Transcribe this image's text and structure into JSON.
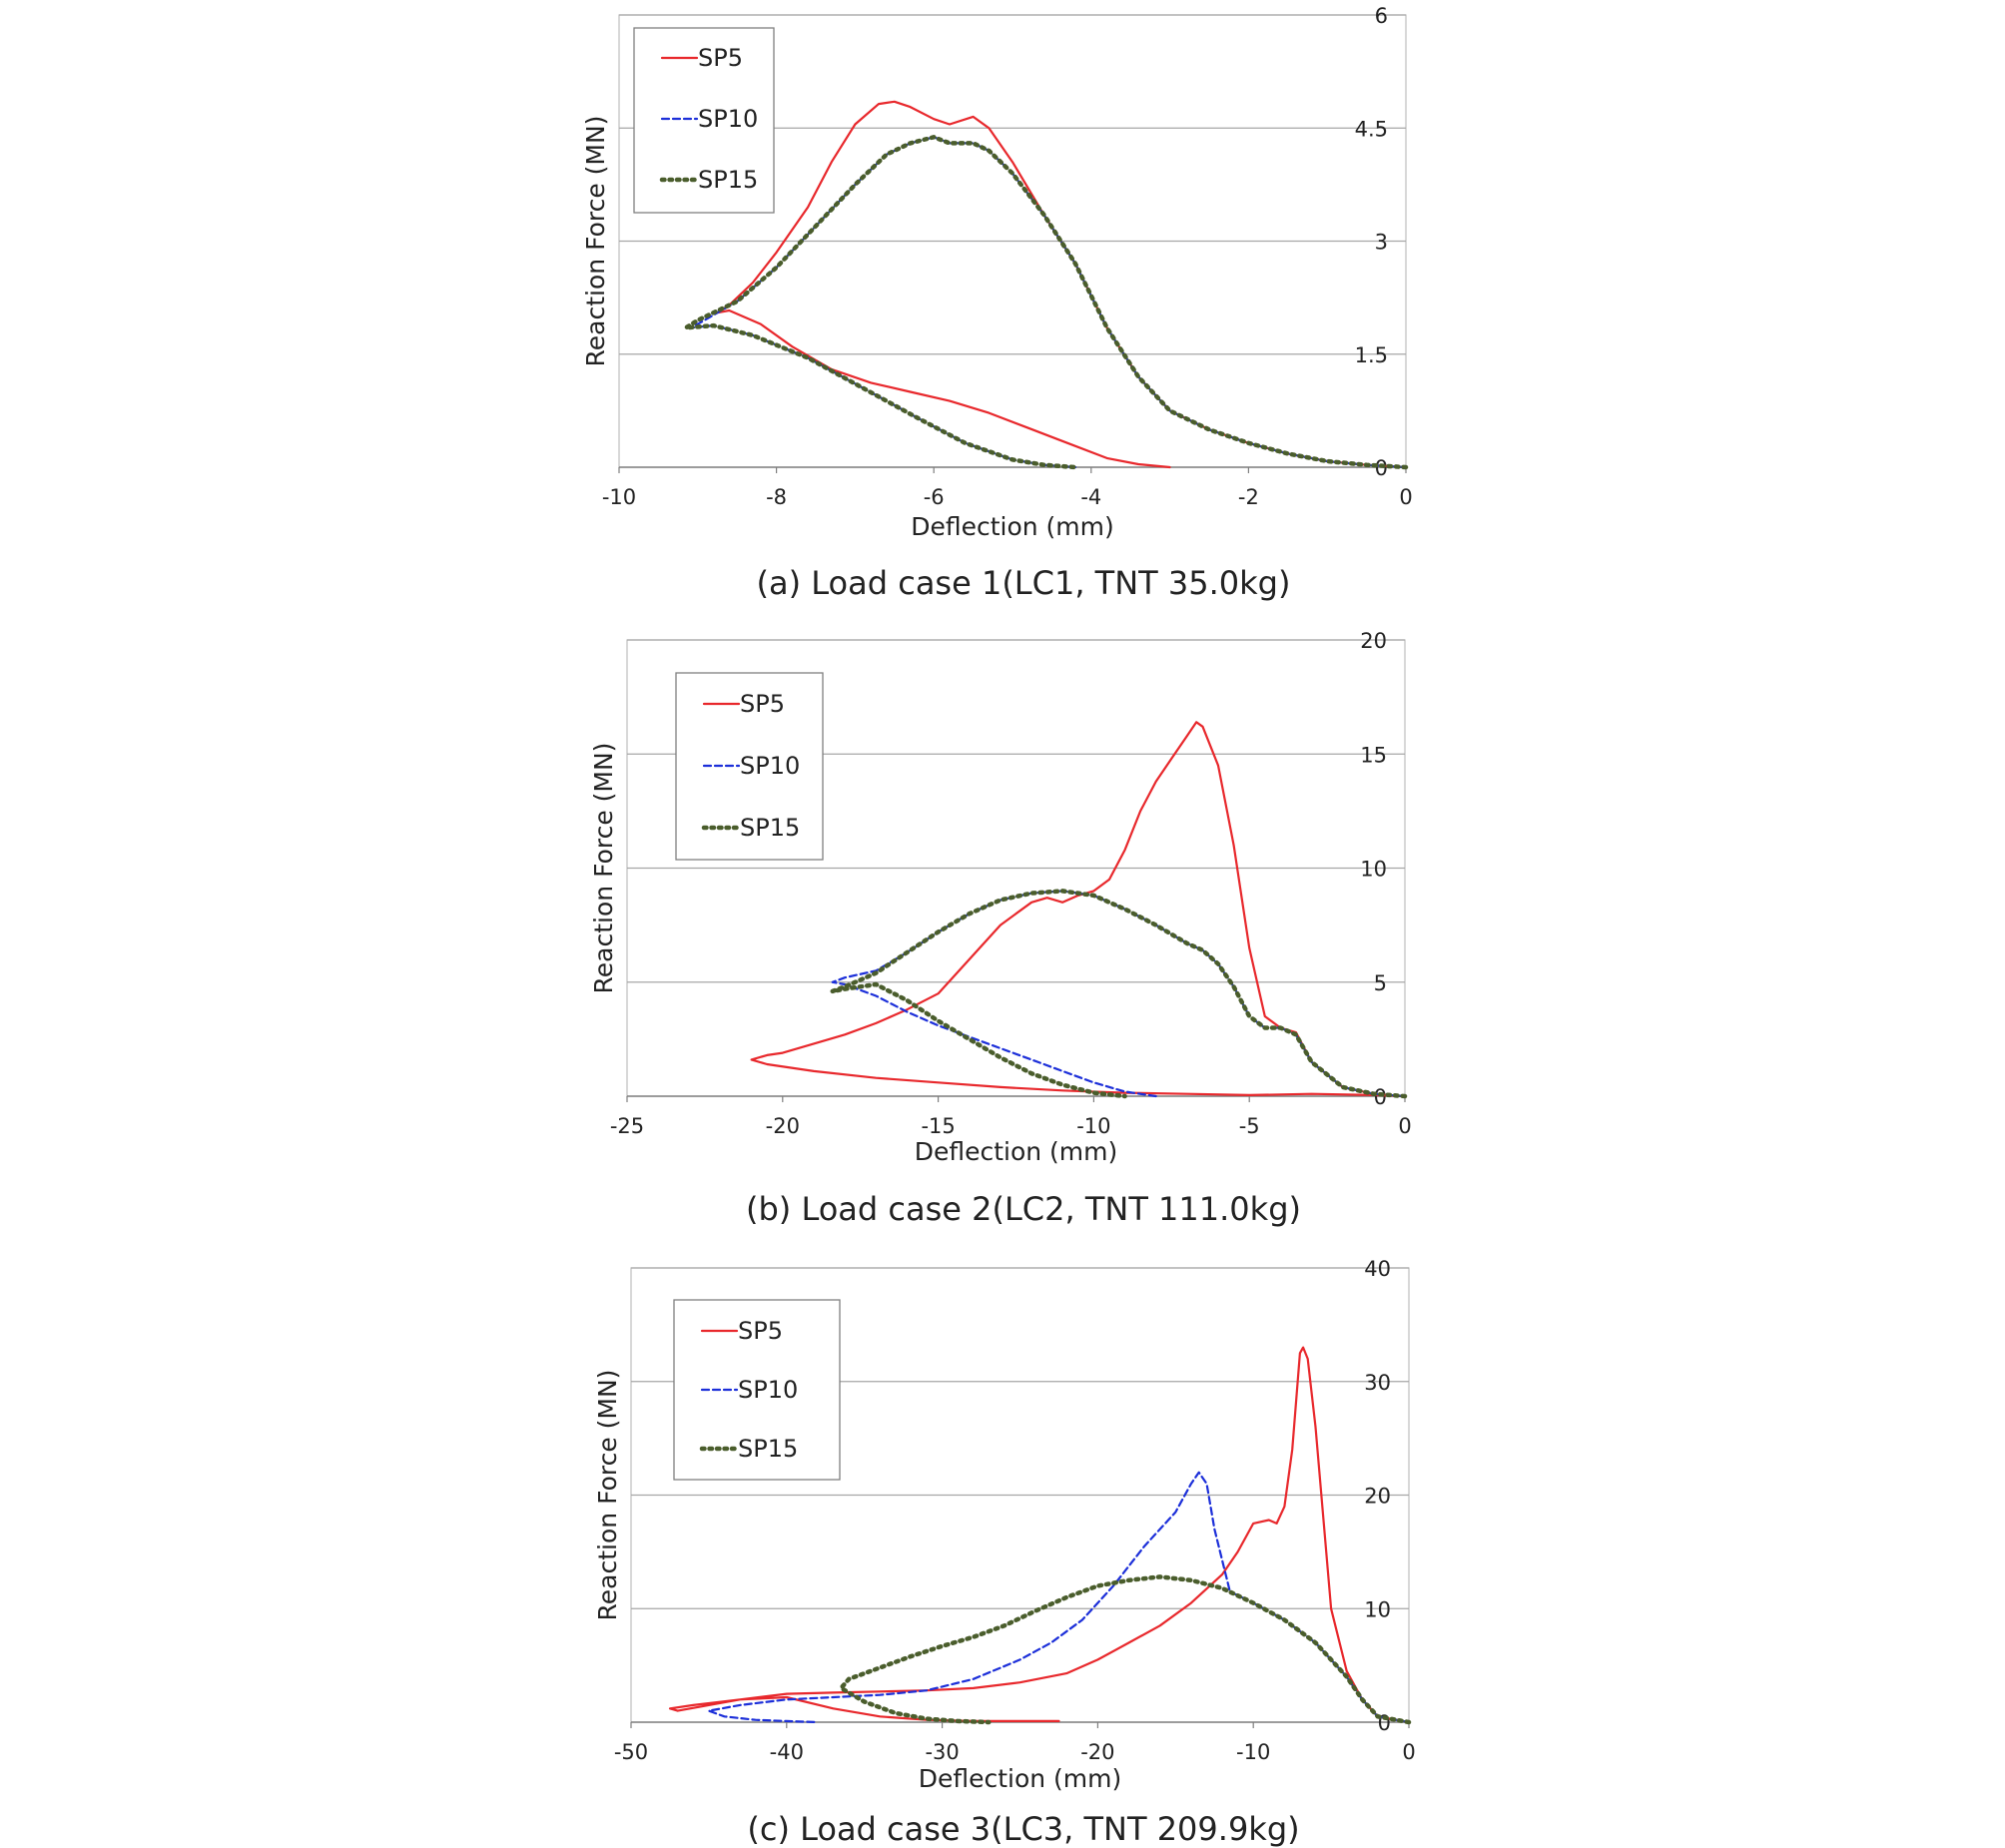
{
  "chart_data": [
    {
      "type": "line",
      "caption": "(a) Load case 1(LC1, TNT 35.0kg)",
      "xlabel": "Deflection (mm)",
      "ylabel": "Reaction Force (MN)",
      "xlim": [
        -10,
        0
      ],
      "ylim": [
        0,
        6
      ],
      "xticks": [
        -10,
        -8,
        -6,
        -4,
        -2,
        0
      ],
      "xtick_labels": [
        "-10",
        "-8",
        "-6",
        "-4",
        "-2",
        "0"
      ],
      "yticks": [
        0,
        1.5,
        3,
        4.5,
        6
      ],
      "ytick_labels": [
        "0",
        "1.5",
        "3",
        "4.5",
        "6"
      ],
      "y_axis_side": "right",
      "grid": "horizontal",
      "legend_position": "top-left",
      "series": [
        {
          "name": "SP5",
          "color": "#e8282c",
          "dash": "solid",
          "x": [
            0,
            -0.5,
            -1.0,
            -1.5,
            -2.0,
            -2.5,
            -3.0,
            -3.4,
            -3.8,
            -4.2,
            -4.6,
            -5.0,
            -5.3,
            -5.5,
            -5.8,
            -6.0,
            -6.3,
            -6.5,
            -6.7,
            -7.0,
            -7.3,
            -7.6,
            -8.0,
            -8.3,
            -8.6,
            -8.75,
            -8.6,
            -8.2,
            -7.8,
            -7.3,
            -6.8,
            -6.3,
            -5.8,
            -5.3,
            -4.8,
            -4.3,
            -3.8,
            -3.4,
            -3.0
          ],
          "y": [
            0,
            0.03,
            0.08,
            0.18,
            0.32,
            0.5,
            0.75,
            1.2,
            1.85,
            2.7,
            3.35,
            4.05,
            4.5,
            4.65,
            4.55,
            4.62,
            4.78,
            4.85,
            4.82,
            4.55,
            4.05,
            3.45,
            2.85,
            2.45,
            2.15,
            2.05,
            2.08,
            1.9,
            1.6,
            1.3,
            1.12,
            1.0,
            0.88,
            0.72,
            0.52,
            0.32,
            0.12,
            0.04,
            0
          ]
        },
        {
          "name": "SP10",
          "color": "#1c2fd9",
          "dash": "dashed",
          "x": [
            0,
            -0.5,
            -1.0,
            -1.5,
            -2.0,
            -2.5,
            -3.0,
            -3.4,
            -3.8,
            -4.2,
            -4.6,
            -5.0,
            -5.3,
            -5.5,
            -5.8,
            -6.0,
            -6.3,
            -6.6,
            -7.0,
            -7.5,
            -8.0,
            -8.5,
            -9.0,
            -9.1,
            -8.8,
            -8.3,
            -7.6,
            -6.9,
            -6.2,
            -5.6,
            -5.0,
            -4.6,
            -4.2
          ],
          "y": [
            0,
            0.03,
            0.08,
            0.18,
            0.32,
            0.5,
            0.75,
            1.2,
            1.85,
            2.7,
            3.35,
            3.9,
            4.2,
            4.3,
            4.3,
            4.38,
            4.3,
            4.15,
            3.75,
            3.2,
            2.65,
            2.2,
            1.9,
            1.85,
            1.88,
            1.75,
            1.45,
            1.05,
            0.65,
            0.32,
            0.1,
            0.03,
            0
          ]
        },
        {
          "name": "SP15",
          "color": "#4a5d2c",
          "dash": "dotted",
          "x": [
            0,
            -0.5,
            -1.0,
            -1.5,
            -2.0,
            -2.5,
            -3.0,
            -3.4,
            -3.8,
            -4.2,
            -4.6,
            -5.0,
            -5.3,
            -5.5,
            -5.8,
            -6.0,
            -6.3,
            -6.6,
            -7.0,
            -7.5,
            -8.0,
            -8.5,
            -9.0,
            -9.15,
            -8.8,
            -8.3,
            -7.6,
            -6.9,
            -6.2,
            -5.6,
            -5.0,
            -4.6,
            -4.2
          ],
          "y": [
            0,
            0.03,
            0.08,
            0.18,
            0.32,
            0.5,
            0.75,
            1.2,
            1.85,
            2.7,
            3.35,
            3.9,
            4.2,
            4.3,
            4.3,
            4.38,
            4.3,
            4.15,
            3.75,
            3.2,
            2.65,
            2.2,
            1.95,
            1.85,
            1.88,
            1.75,
            1.45,
            1.05,
            0.65,
            0.32,
            0.1,
            0.03,
            0
          ]
        }
      ]
    },
    {
      "type": "line",
      "caption": "(b) Load case 2(LC2, TNT 111.0kg)",
      "xlabel": "Deflection (mm)",
      "ylabel": "Reaction Force (MN)",
      "xlim": [
        -25,
        0
      ],
      "ylim": [
        0,
        20
      ],
      "xticks": [
        -25,
        -20,
        -15,
        -10,
        -5,
        0
      ],
      "xtick_labels": [
        "-25",
        "-20",
        "-15",
        "-10",
        "-5",
        "0"
      ],
      "yticks": [
        0,
        5,
        10,
        15,
        20
      ],
      "ytick_labels": [
        "0",
        "5",
        "10",
        "15",
        "20"
      ],
      "y_axis_side": "right",
      "grid": "horizontal",
      "legend_position": "top-left",
      "series": [
        {
          "name": "SP5",
          "color": "#e8282c",
          "dash": "solid",
          "x": [
            0,
            -1.0,
            -2.0,
            -3.0,
            -3.5,
            -4.0,
            -4.5,
            -5.0,
            -5.5,
            -6.0,
            -6.5,
            -6.7,
            -7.0,
            -7.5,
            -8.0,
            -8.5,
            -9.0,
            -9.5,
            -10.0,
            -10.5,
            -11.0,
            -11.5,
            -12.0,
            -13.0,
            -14.0,
            -15.0,
            -16.0,
            -17.0,
            -18.0,
            -19.0,
            -20.0,
            -20.5,
            -21.0,
            -20.5,
            -19.0,
            -17.0,
            -15.0,
            -13.0,
            -11.0,
            -9.0,
            -7.0,
            -5.0,
            -3.0,
            -1.0,
            0
          ],
          "y": [
            0,
            0.1,
            0.4,
            1.5,
            2.8,
            3.0,
            3.5,
            6.5,
            11.0,
            14.5,
            16.2,
            16.4,
            15.8,
            14.8,
            13.8,
            12.5,
            10.8,
            9.5,
            9.0,
            8.8,
            8.5,
            8.7,
            8.5,
            7.5,
            6.0,
            4.5,
            3.8,
            3.2,
            2.7,
            2.3,
            1.9,
            1.8,
            1.6,
            1.4,
            1.1,
            0.8,
            0.6,
            0.4,
            0.25,
            0.15,
            0.1,
            0.05,
            0.1,
            0.05,
            0
          ]
        },
        {
          "name": "SP10",
          "color": "#1c2fd9",
          "dash": "dashed",
          "x": [
            0,
            -1.0,
            -2.0,
            -3.0,
            -3.5,
            -4.0,
            -4.5,
            -5.0,
            -5.5,
            -6.0,
            -6.5,
            -7.0,
            -7.5,
            -8.0,
            -9.0,
            -10.0,
            -11.0,
            -12.0,
            -13.0,
            -14.0,
            -15.0,
            -16.0,
            -17.0,
            -18.0,
            -18.4,
            -18.0,
            -17.0,
            -16.0,
            -15.0,
            -14.0,
            -13.0,
            -12.0,
            -11.0,
            -10.0,
            -9.0,
            -8.0
          ],
          "y": [
            0,
            0.1,
            0.4,
            1.5,
            2.7,
            3.0,
            3.0,
            3.5,
            4.8,
            5.8,
            6.4,
            6.7,
            7.1,
            7.5,
            8.2,
            8.8,
            9.0,
            8.9,
            8.6,
            8.0,
            7.2,
            6.3,
            5.5,
            5.2,
            5.0,
            4.9,
            4.4,
            3.7,
            3.1,
            2.6,
            2.1,
            1.6,
            1.1,
            0.6,
            0.2,
            0
          ]
        },
        {
          "name": "SP15",
          "color": "#4a5d2c",
          "dash": "dotted",
          "x": [
            0,
            -1.0,
            -2.0,
            -3.0,
            -3.5,
            -4.0,
            -4.5,
            -5.0,
            -5.5,
            -6.0,
            -6.5,
            -7.0,
            -7.5,
            -8.0,
            -9.0,
            -10.0,
            -11.0,
            -12.0,
            -13.0,
            -14.0,
            -15.0,
            -16.0,
            -17.0,
            -17.5,
            -18.0,
            -18.4,
            -18.0,
            -17.0,
            -16.0,
            -15.0,
            -14.0,
            -13.0,
            -12.0,
            -11.0,
            -10.0,
            -9.0
          ],
          "y": [
            0,
            0.1,
            0.4,
            1.5,
            2.7,
            3.0,
            3.0,
            3.5,
            4.8,
            5.8,
            6.4,
            6.7,
            7.1,
            7.5,
            8.2,
            8.8,
            9.0,
            8.9,
            8.6,
            8.0,
            7.2,
            6.3,
            5.4,
            5.1,
            4.8,
            4.6,
            4.7,
            4.9,
            4.2,
            3.3,
            2.5,
            1.7,
            1.0,
            0.5,
            0.15,
            0
          ]
        }
      ]
    },
    {
      "type": "line",
      "caption": "(c) Load case 3(LC3, TNT 209.9kg)",
      "xlabel": "Deflection (mm)",
      "ylabel": "Reaction Force (MN)",
      "xlim": [
        -50,
        0
      ],
      "ylim": [
        0,
        40
      ],
      "xticks": [
        -50,
        -40,
        -30,
        -20,
        -10,
        0
      ],
      "xtick_labels": [
        "-50",
        "-40",
        "-30",
        "-20",
        "-10",
        "0"
      ],
      "yticks": [
        0,
        10,
        20,
        30,
        40
      ],
      "ytick_labels": [
        "0",
        "10",
        "20",
        "30",
        "40"
      ],
      "y_axis_side": "right",
      "grid": "horizontal",
      "legend_position": "top-left",
      "series": [
        {
          "name": "SP5",
          "color": "#e8282c",
          "dash": "solid",
          "x": [
            0,
            -2.0,
            -3.0,
            -4.0,
            -5.0,
            -5.5,
            -6.0,
            -6.5,
            -6.8,
            -7.0,
            -7.5,
            -8.0,
            -8.5,
            -9.0,
            -10.0,
            -11.0,
            -12.0,
            -14.0,
            -16.0,
            -18.0,
            -20.0,
            -22.0,
            -25.0,
            -28.0,
            -31.0,
            -34.0,
            -37.0,
            -40.0,
            -43.0,
            -46.0,
            -47.5,
            -47.0,
            -45.0,
            -43.0,
            -40.0,
            -37.0,
            -34.0,
            -31.0,
            -28.0,
            -25.0,
            -22.5
          ],
          "y": [
            0,
            0.5,
            2.0,
            4.5,
            10.0,
            18.0,
            26.0,
            32.0,
            33.0,
            32.5,
            24.0,
            19.0,
            17.5,
            17.8,
            17.5,
            15.0,
            13.0,
            10.5,
            8.5,
            7.0,
            5.5,
            4.3,
            3.5,
            3.0,
            2.8,
            2.7,
            2.6,
            2.5,
            2.0,
            1.5,
            1.2,
            1.0,
            1.5,
            2.0,
            2.2,
            1.2,
            0.5,
            0.2,
            0.1,
            0.1,
            0.1
          ]
        },
        {
          "name": "SP10",
          "color": "#1c2fd9",
          "dash": "dashed",
          "x": [
            0,
            -2.0,
            -3.0,
            -4.0,
            -5.0,
            -6.0,
            -8.0,
            -10.0,
            -11.5,
            -12.5,
            -13.0,
            -13.5,
            -14.0,
            -15.0,
            -17.0,
            -19.0,
            -21.0,
            -23.0,
            -25.0,
            -28.0,
            -31.0,
            -34.0,
            -37.0,
            -40.0,
            -43.0,
            -45.0,
            -44.0,
            -42.0,
            -40.0,
            -38.0
          ],
          "y": [
            0,
            0.5,
            2.0,
            4.0,
            5.5,
            7.0,
            9.0,
            10.5,
            11.5,
            17.0,
            21.0,
            22.0,
            21.0,
            18.5,
            15.5,
            12.0,
            9.0,
            7.0,
            5.5,
            3.8,
            2.8,
            2.4,
            2.2,
            2.0,
            1.5,
            1.0,
            0.5,
            0.2,
            0.1,
            0
          ]
        },
        {
          "name": "SP15",
          "color": "#4a5d2c",
          "dash": "dotted",
          "x": [
            0,
            -2.0,
            -3.0,
            -4.0,
            -5.0,
            -6.0,
            -8.0,
            -10.0,
            -12.0,
            -14.0,
            -16.0,
            -18.0,
            -20.0,
            -22.0,
            -24.0,
            -26.0,
            -28.0,
            -30.0,
            -32.0,
            -34.0,
            -36.0,
            -36.5,
            -35.0,
            -33.0,
            -31.0,
            -29.0,
            -27.0
          ],
          "y": [
            0,
            0.5,
            2.0,
            4.0,
            5.5,
            7.0,
            9.0,
            10.5,
            11.8,
            12.5,
            12.8,
            12.5,
            12.0,
            11.0,
            9.8,
            8.5,
            7.5,
            6.7,
            5.8,
            4.8,
            3.8,
            3.0,
            1.8,
            0.8,
            0.3,
            0.1,
            0
          ]
        }
      ]
    }
  ]
}
